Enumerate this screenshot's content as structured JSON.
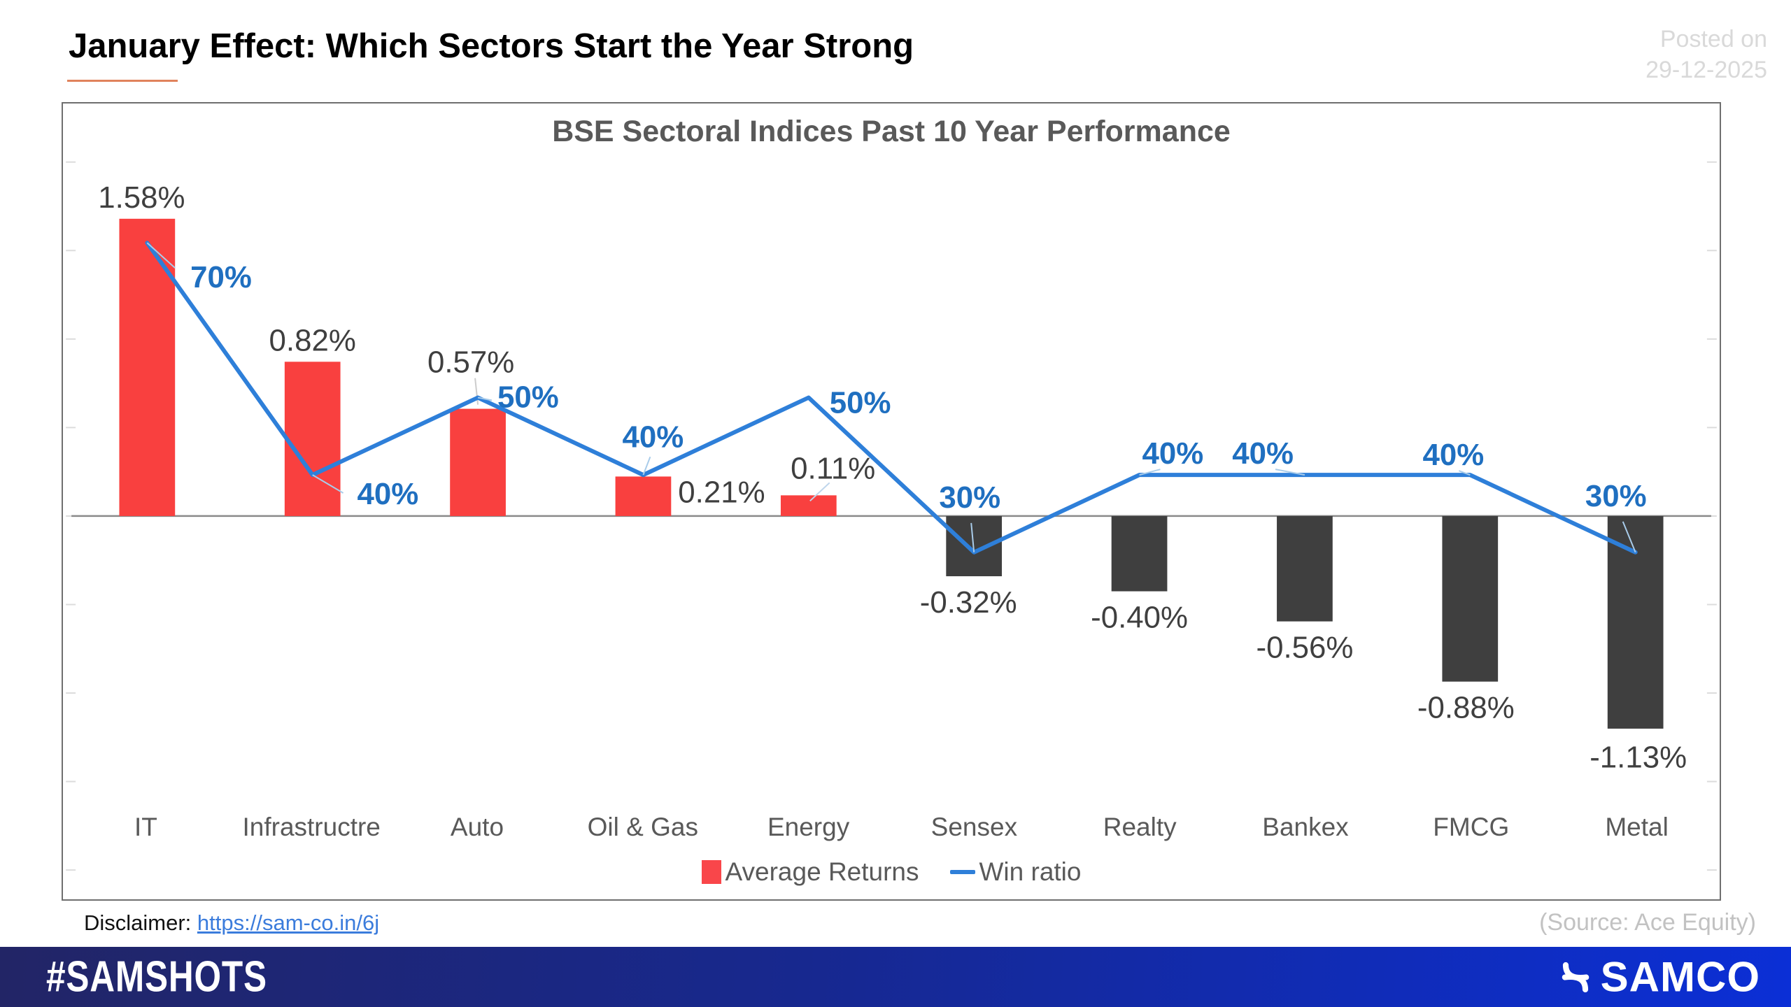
{
  "header": {
    "title": "January Effect: Which Sectors Start the Year Strong",
    "posted_label": "Posted on",
    "posted_date": "29-12-2025"
  },
  "chart_data": {
    "type": "bar",
    "combo": "bar+line",
    "title": "BSE Sectoral Indices Past 10 Year Performance",
    "categories": [
      "IT",
      "Infrastructre",
      "Auto",
      "Oil & Gas",
      "Energy",
      "Sensex",
      "Realty",
      "Bankex",
      "FMCG",
      "Metal"
    ],
    "series": [
      {
        "name": "Average Returns",
        "type": "bar",
        "unit": "%",
        "values": [
          1.58,
          0.82,
          0.57,
          0.21,
          0.11,
          -0.32,
          -0.4,
          -0.56,
          -0.88,
          -1.13
        ],
        "labels": [
          "1.58%",
          "0.82%",
          "0.57%",
          "0.21%",
          "0.11%",
          "-0.32%",
          "-0.40%",
          "-0.56%",
          "-0.88%",
          "-1.13%"
        ],
        "color_positive": "#F9403F",
        "color_negative": "#3F3F3F"
      },
      {
        "name": "Win ratio",
        "type": "line",
        "unit": "%",
        "values": [
          70,
          40,
          50,
          40,
          50,
          30,
          40,
          40,
          40,
          30
        ],
        "labels": [
          "70%",
          "40%",
          "50%",
          "40%",
          "50%",
          "30%",
          "40%",
          "40%",
          "40%",
          "30%"
        ],
        "color": "#2E7FD9",
        "label_color": "#1F6FC0"
      }
    ],
    "xlabel": "",
    "ylabel": "",
    "value_axis_visible": false,
    "gridlines": false,
    "legend_position": "bottom"
  },
  "footer": {
    "disclaimer_label": "Disclaimer:",
    "disclaimer_url": "https://sam-co.in/6j",
    "source": "(Source: Ace Equity)",
    "hashtag": "#SAMSHOTS",
    "brand": "SAMCO"
  }
}
